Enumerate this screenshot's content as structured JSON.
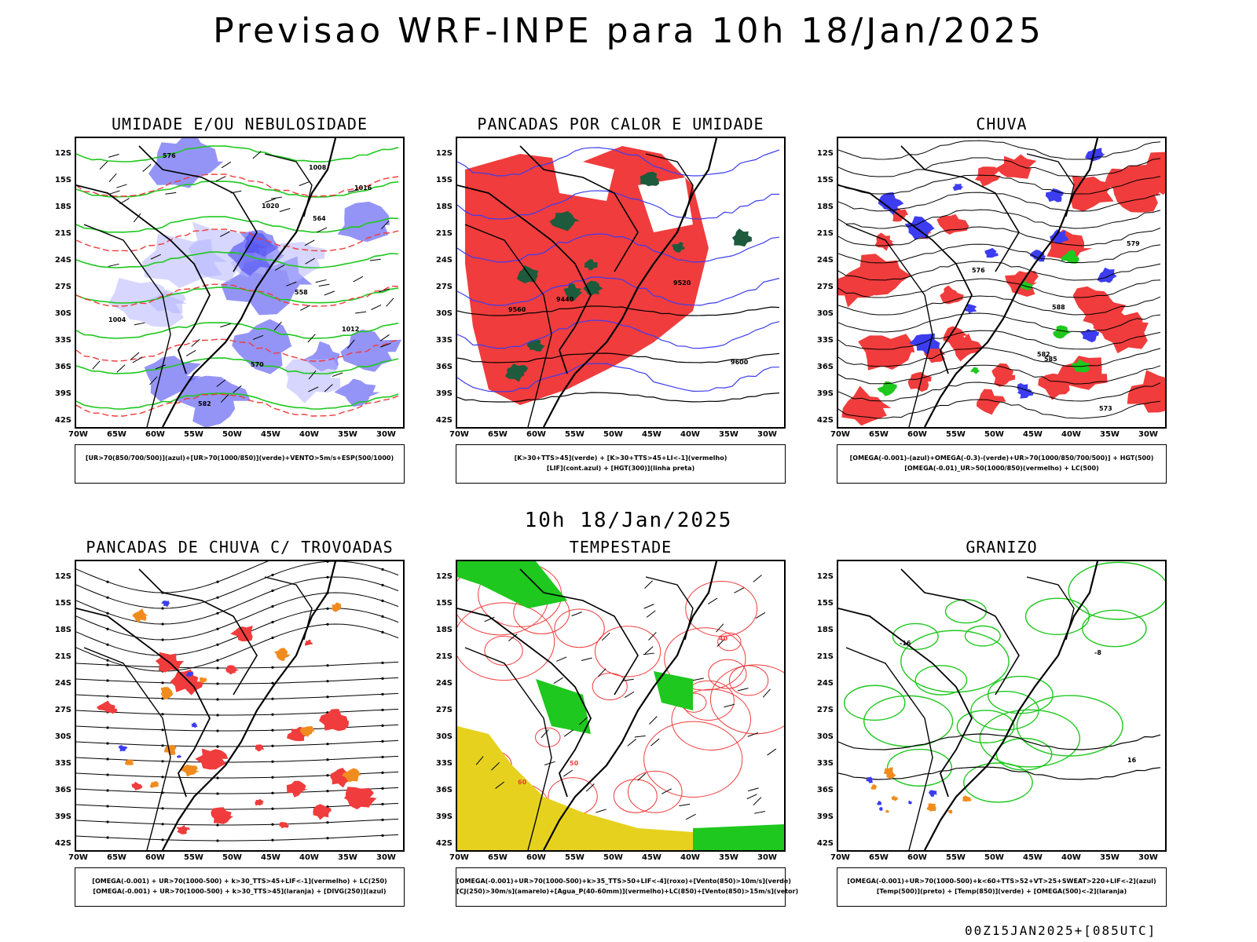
{
  "main_title": "Previsao WRF-INPE  para 10h 18/Jan/2025",
  "mid_title": "10h 18/Jan/2025",
  "footer": "00Z15JAN2025+[085UTC]",
  "lat_labels": [
    "12S",
    "15S",
    "18S",
    "21S",
    "24S",
    "27S",
    "30S",
    "33S",
    "36S",
    "39S",
    "42S"
  ],
  "lon_labels": [
    "70W",
    "65W",
    "60W",
    "55W",
    "50W",
    "45W",
    "40W",
    "35W",
    "30W"
  ],
  "colors": {
    "red": "#f03c3c",
    "blue": "#3c3cf0",
    "green": "#1ec81e",
    "orange": "#f08c1e",
    "yellow": "#e6d21e",
    "darkgreen": "#1e5a3c",
    "lavender": "#b4b4ff"
  },
  "panels": [
    {
      "title": "UMIDADE E/OU NEBULOSIDADE",
      "legend": [
        "[UR>70(850/700/500)](azul)+[UR>70(1000/850)](verde)+VENTO>5m/s+ESP(500/1000)"
      ],
      "contour_labels": [
        "1012",
        "1016",
        "1020",
        "1004",
        "1008",
        "576",
        "570",
        "582",
        "564",
        "558"
      ]
    },
    {
      "title": "PANCADAS POR CALOR E UMIDADE",
      "legend": [
        "[K>30+TTS>45](verde) + [K>30+TTS>45+LI<-1](vermelho)",
        "[LIF](cont.azul) + [HGT(300)](linha preta)"
      ],
      "contour_labels": [
        "9600",
        "9520",
        "9440",
        "9560"
      ]
    },
    {
      "title": "CHUVA",
      "legend": [
        "[OMEGA(-0.001)-(azul)+OMEGA(-0.3)-(verde)+UR>70(1000/850/700/500)] + HGT(500)",
        "[OMEGA(-0.01)_UR>50(1000/850)(vermelho) + LC(500)"
      ],
      "contour_labels": [
        "585",
        "582",
        "579",
        "576",
        "573",
        "588"
      ]
    },
    {
      "title": "PANCADAS DE CHUVA C/ TROVOADAS",
      "legend": [
        "[OMEGA(-0.001) + UR>70(1000-500) + k>30_TTS>45+LIF<-1](vermelho) + LC(250)",
        "[OMEGA(-0.001) + UR>70(1000-500) + k>30_TTS>45](laranja) + [DIVG(250)](azul)"
      ],
      "contour_labels": []
    },
    {
      "title": "TEMPESTADE",
      "legend": [
        "[OMEGA(-0.001)+UR>70(1000-500)+k>35_TTS>50+LIF<-4](roxo)+[Vento(850)>10m/s](verde)",
        "[CJ(250)>30m/s](amarelo)+[Agua_P(40-60mm)](vermelho)+LC(850)+[Vento(850)>15m/s](vetor)"
      ],
      "contour_labels": [
        "40",
        "50",
        "60"
      ]
    },
    {
      "title": "GRANIZO",
      "legend": [
        "[OMEGA(-0.001)+UR>70(1000-500)+k<60+TTS>52+VT>25+SWEAT>220+LIF<-2](azul)",
        "[Temp(500)](preto) + [Temp(850)](verde) + [OMEGA(500)<-2](laranja)"
      ],
      "contour_labels": [
        "-16",
        "-8",
        "16"
      ]
    }
  ]
}
